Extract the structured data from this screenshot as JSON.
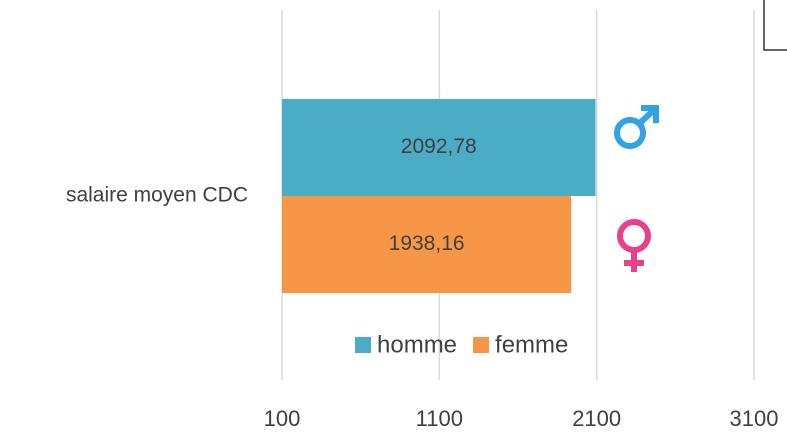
{
  "chart_data": {
    "type": "hbar",
    "categories": [
      "salaire moyen CDC"
    ],
    "series": [
      {
        "name": "homme",
        "color": "#4bacc6",
        "values": [
          2092.78
        ],
        "value_labels": [
          "2092,78"
        ]
      },
      {
        "name": "femme",
        "color": "#f79646",
        "values": [
          1938.16
        ],
        "value_labels": [
          "1938,16"
        ]
      }
    ],
    "xlim": [
      100,
      3100
    ],
    "xticks": [
      100,
      1100,
      2100,
      3100
    ],
    "grid": true,
    "legend": "bottom"
  }
}
